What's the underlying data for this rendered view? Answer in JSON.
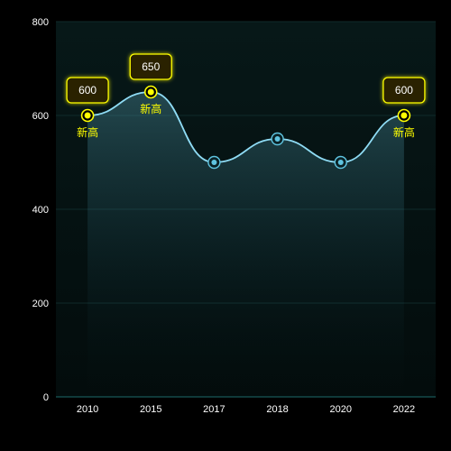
{
  "chart_data": {
    "type": "area",
    "title": "",
    "xlabel": "",
    "ylabel": "",
    "categories": [
      "2010",
      "2015",
      "2017",
      "2018",
      "2020",
      "2022"
    ],
    "series": [
      {
        "values": [
          600,
          650,
          500,
          550,
          500,
          600
        ]
      }
    ],
    "ylim": [
      0,
      800
    ],
    "yticks": [
      "0",
      "200",
      "400",
      "600",
      "800"
    ],
    "grid": true,
    "legend": "none",
    "highlights": [
      {
        "index": 0,
        "value_label": "600",
        "caption": "新高"
      },
      {
        "index": 1,
        "value_label": "650",
        "caption": "新高"
      },
      {
        "index": 5,
        "value_label": "600",
        "caption": "新高"
      }
    ],
    "colors": {
      "page_background": "#000000",
      "plot_background": "#061414",
      "line": "#8fdcf5",
      "marker": "#5fc4e0",
      "highlight": "#ffff00",
      "label_box": "#2a2400",
      "gridline": "#0f2a2a",
      "axis": "#1e6b6b"
    }
  }
}
